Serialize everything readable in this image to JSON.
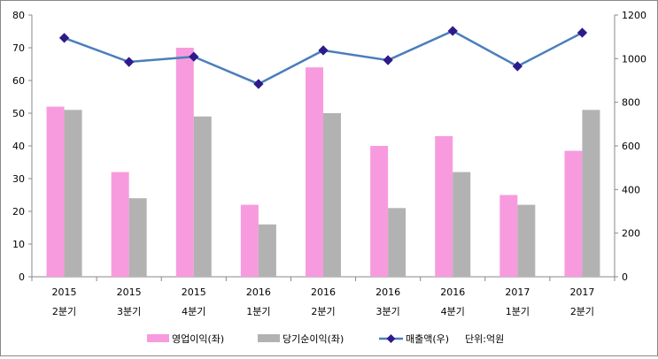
{
  "chart_data": {
    "type": "bar",
    "categories": [
      [
        "2015",
        "2분기"
      ],
      [
        "2015",
        "3분기"
      ],
      [
        "2015",
        "4분기"
      ],
      [
        "2016",
        "1분기"
      ],
      [
        "2016",
        "2분기"
      ],
      [
        "2016",
        "3분기"
      ],
      [
        "2016",
        "4분기"
      ],
      [
        "2017",
        "1분기"
      ],
      [
        "2017",
        "2분기"
      ]
    ],
    "series": [
      {
        "name": "영업이익(좌)",
        "type": "bar",
        "axis": "left",
        "color": "#F79BDE",
        "values": [
          52,
          32,
          70,
          22,
          64,
          40,
          43,
          25,
          38.5
        ]
      },
      {
        "name": "당기순이익(좌)",
        "type": "bar",
        "axis": "left",
        "color": "#B2B2B2",
        "values": [
          51,
          24,
          49,
          16,
          50,
          21,
          32,
          22,
          51
        ]
      },
      {
        "name": "매출액(우)",
        "type": "line",
        "axis": "right",
        "color": "#4A7EBB",
        "marker_color": "#2E1A8C",
        "values": [
          1095,
          985,
          1009,
          884,
          1038,
          993,
          1127,
          965,
          1119
        ]
      }
    ],
    "unit_note": "단위:억원",
    "ylim_left": [
      0,
      80
    ],
    "yticks_left": [
      0,
      10,
      20,
      30,
      40,
      50,
      60,
      70,
      80
    ],
    "ylim_right": [
      0,
      1200
    ],
    "yticks_right": [
      0,
      200,
      400,
      600,
      800,
      1000,
      1200
    ],
    "legend": "bottom",
    "grid": false
  }
}
